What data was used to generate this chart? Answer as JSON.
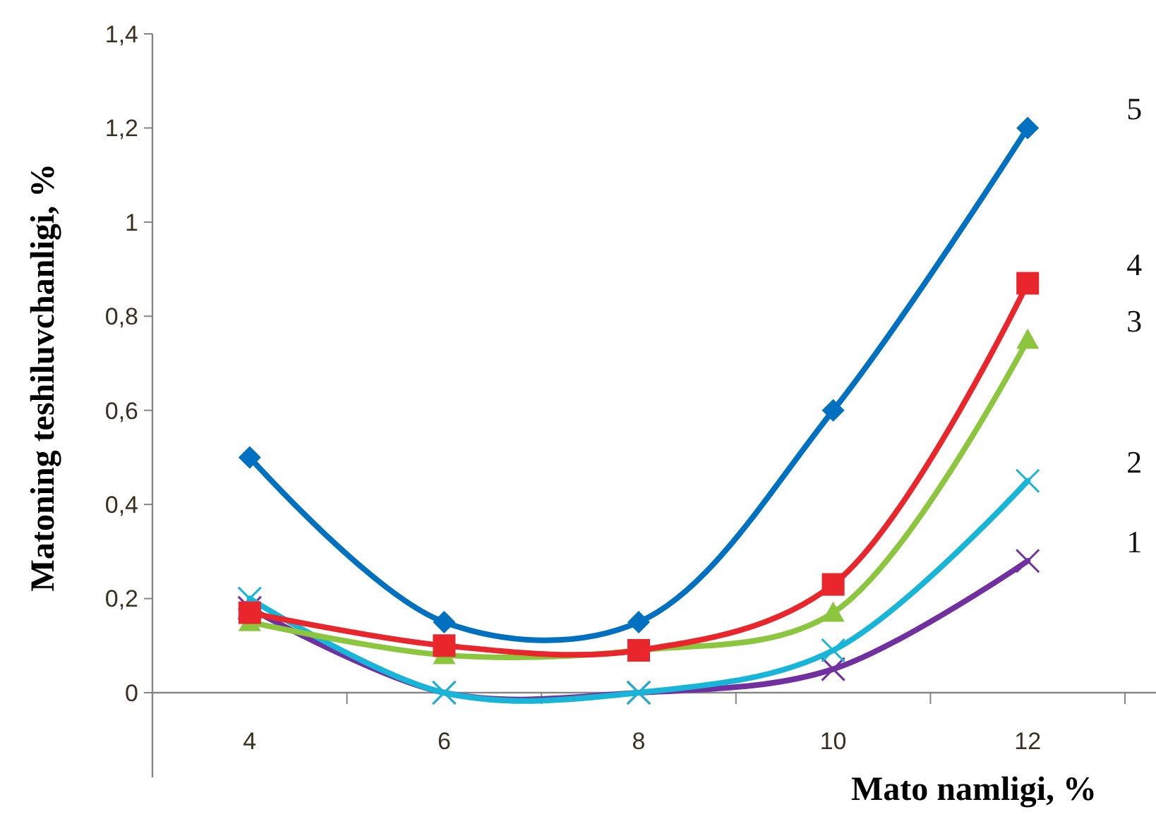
{
  "chart_data": {
    "type": "line",
    "xlabel": "Mato namligi, %",
    "ylabel": "Matoning teshiluvchanligi, %",
    "categories": [
      "4",
      "6",
      "8",
      "10",
      "12"
    ],
    "ylim": [
      0,
      1.4
    ],
    "yticks": [
      0,
      {
        "value": 0.2,
        "label": "0,2"
      },
      {
        "value": 0.4,
        "label": "0,4"
      },
      {
        "value": 0.6,
        "label": "0,6"
      },
      {
        "value": 0.8,
        "label": "0,8"
      },
      1,
      {
        "value": 1.2,
        "label": "1,2"
      },
      {
        "value": 1.4,
        "label": "1,4"
      }
    ],
    "grid": false,
    "series": [
      {
        "name": "1",
        "color": "#7030a0",
        "marker": "cross",
        "values": [
          0.18,
          0,
          0,
          0.05,
          0.28
        ]
      },
      {
        "name": "2",
        "color": "#17b5d8",
        "marker": "cross",
        "values": [
          0.2,
          0,
          0,
          0.09,
          0.45
        ]
      },
      {
        "name": "3",
        "color": "#8cc63f",
        "marker": "triangle",
        "values": [
          0.15,
          0.08,
          0.09,
          0.17,
          0.75
        ]
      },
      {
        "name": "4",
        "color": "#e8262c",
        "marker": "square",
        "values": [
          0.17,
          0.1,
          0.09,
          0.23,
          0.87
        ]
      },
      {
        "name": "5",
        "color": "#0070c0",
        "marker": "diamond",
        "values": [
          0.5,
          0.15,
          0.15,
          0.6,
          1.2
        ]
      }
    ]
  }
}
